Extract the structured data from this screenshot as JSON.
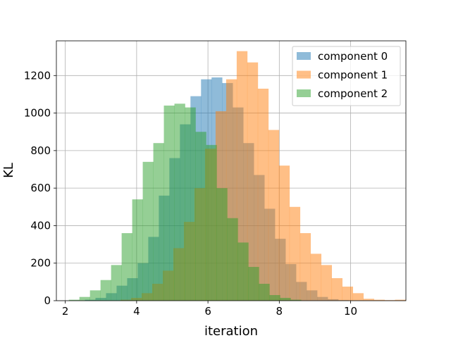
{
  "chart_data": {
    "type": "bar",
    "subtype": "histogram",
    "title": "",
    "xlabel": "iteration",
    "ylabel": "KL",
    "xlim": [
      1.75,
      11.55
    ],
    "ylim": [
      0,
      1385
    ],
    "xticks": [
      2,
      4,
      6,
      8,
      10
    ],
    "yticks": [
      0,
      200,
      400,
      600,
      800,
      1000,
      1200
    ],
    "grid": true,
    "legend_position": "top-right",
    "alpha": 0.5,
    "series": [
      {
        "name": "component 0",
        "color": "#1f77b4",
        "bin_start": 2.55,
        "bin_width": 0.296,
        "counts": [
          5,
          15,
          40,
          80,
          120,
          200,
          340,
          560,
          760,
          940,
          1090,
          1180,
          1190,
          1160,
          1030,
          840,
          670,
          490,
          330,
          195,
          100,
          55,
          20,
          8,
          3
        ]
      },
      {
        "name": "component 1",
        "color": "#ff7f0e",
        "bin_start": 3.55,
        "bin_width": 0.296,
        "counts": [
          5,
          15,
          40,
          90,
          160,
          280,
          420,
          600,
          810,
          1010,
          1180,
          1330,
          1270,
          1130,
          910,
          720,
          500,
          360,
          250,
          190,
          120,
          75,
          40,
          10,
          5,
          3,
          5
        ]
      },
      {
        "name": "component 2",
        "color": "#2ca02c",
        "bin_start": 2.1,
        "bin_width": 0.296,
        "counts": [
          5,
          20,
          55,
          110,
          190,
          360,
          540,
          740,
          840,
          1040,
          1050,
          1030,
          900,
          830,
          600,
          440,
          310,
          180,
          90,
          30,
          15,
          5
        ]
      }
    ]
  }
}
